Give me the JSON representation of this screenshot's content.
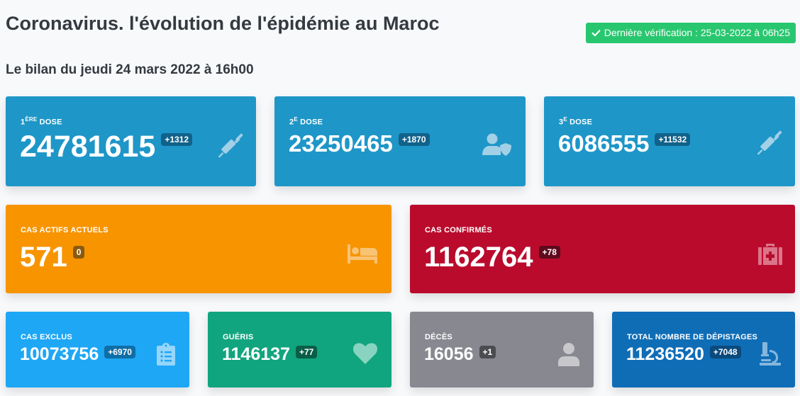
{
  "header": {
    "title": "Coronavirus. l'évolution de l'épidémie au Maroc",
    "verification": "Dernière vérification : 25-03-2022 à 06h25",
    "subtitle": "Le bilan du jeudi 24 mars 2022 à 16h00"
  },
  "cards": {
    "dose1": {
      "label_num": "1",
      "label_sup": "ÈRE",
      "label_text": "DOSE",
      "value": "24781615",
      "delta": "+1312",
      "icon": "syringe-icon",
      "color": "#1e96c8"
    },
    "dose2": {
      "label_num": "2",
      "label_sup": "E",
      "label_text": "DOSE",
      "value": "23250465",
      "delta": "+1870",
      "icon": "user-shield-icon",
      "color": "#1e96c8"
    },
    "dose3": {
      "label_num": "3",
      "label_sup": "E",
      "label_text": "DOSE",
      "value": "6086555",
      "delta": "+11532",
      "icon": "syringe-icon",
      "color": "#1e96c8"
    },
    "actifs": {
      "label": "CAS ACTIFS ACTUELS",
      "value": "571",
      "delta": "0",
      "icon": "bed-icon",
      "color": "#f79400"
    },
    "confirmes": {
      "label": "CAS CONFIRMÉS",
      "value": "1162764",
      "delta": "+78",
      "icon": "medkit-icon",
      "color": "#ba0b2d"
    },
    "exclus": {
      "label": "CAS EXCLUS",
      "value": "10073756",
      "delta": "+6970",
      "icon": "clipboard-list-icon",
      "color": "#1ea7f5"
    },
    "gueris": {
      "label": "GUÉRIS",
      "value": "1146137",
      "delta": "+77",
      "icon": "heart-icon",
      "color": "#10a57e"
    },
    "deces": {
      "label": "DÉCÈS",
      "value": "16056",
      "delta": "+1",
      "icon": "user-icon",
      "color": "#878890"
    },
    "depistages": {
      "label": "TOTAL NOMBRE DE DÉPISTAGES",
      "value": "11236520",
      "delta": "+7048",
      "icon": "microscope-icon",
      "color": "#0f6db6"
    }
  }
}
